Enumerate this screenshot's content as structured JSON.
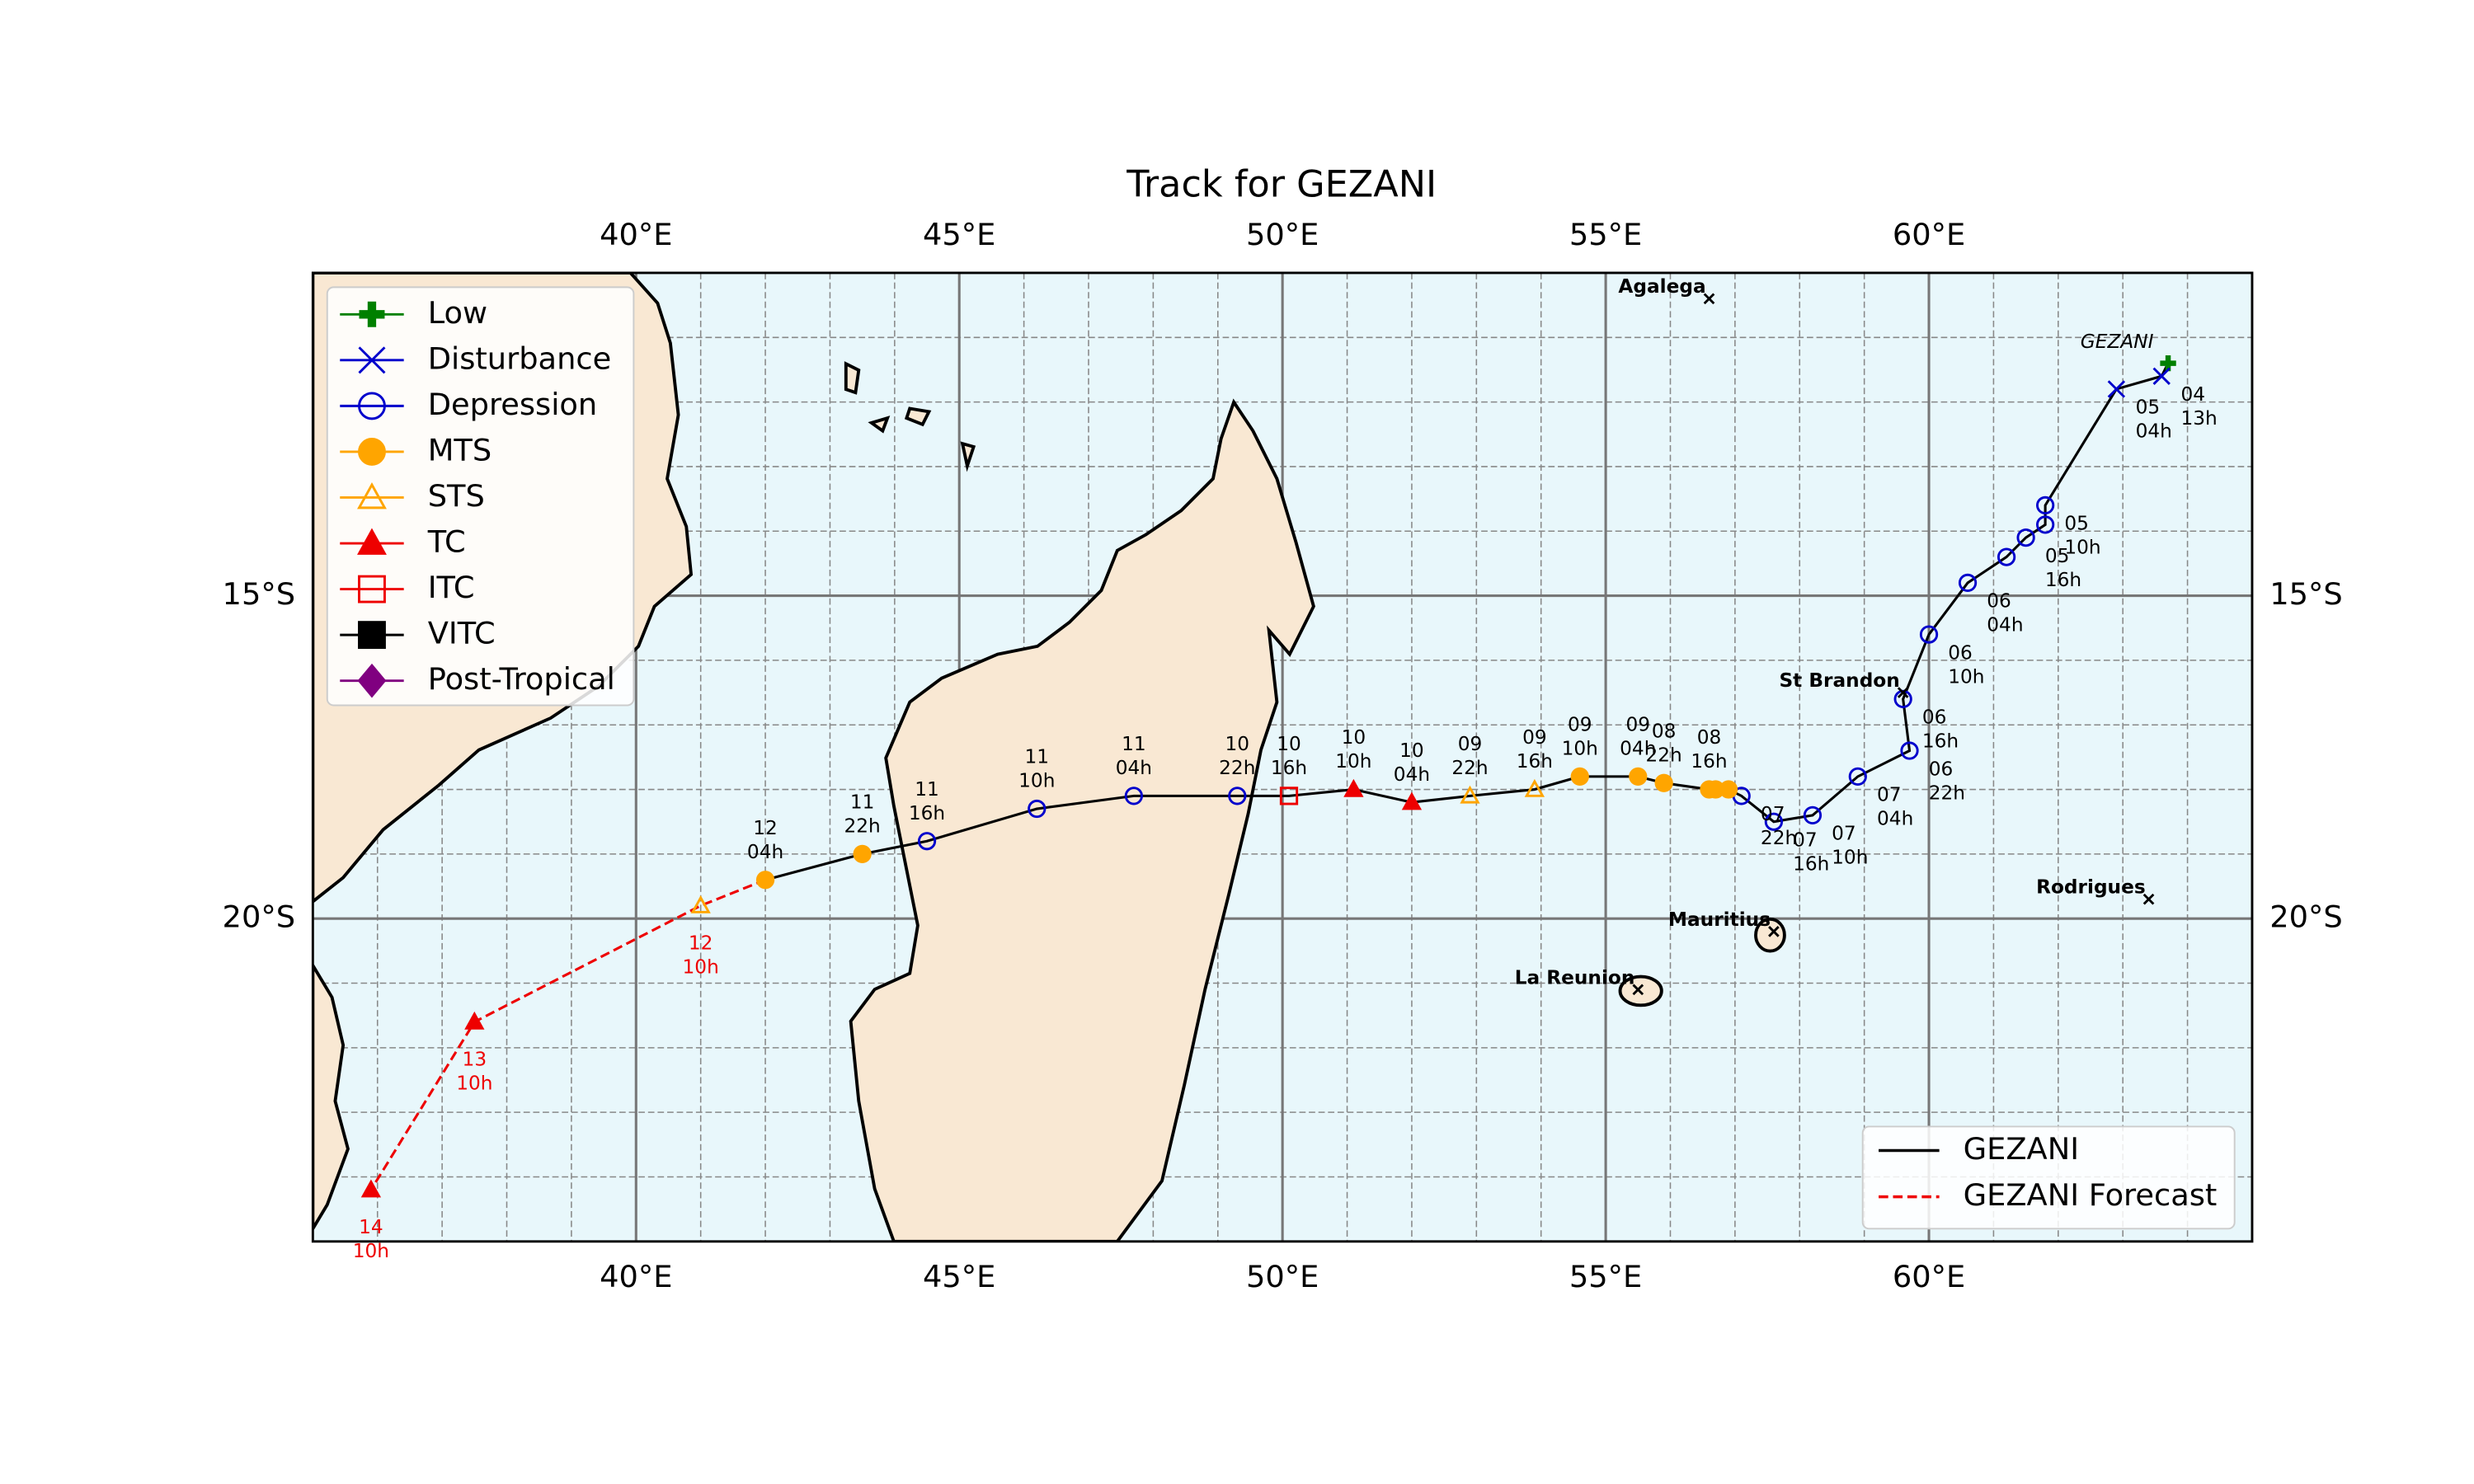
{
  "chart_data": {
    "type": "track",
    "title": "Track for GEZANI",
    "storm_label": "GEZANI",
    "xlim": [
      35,
      65
    ],
    "ylim": [
      -25,
      -10
    ],
    "xticks": [
      {
        "value": 40,
        "label": "40°E"
      },
      {
        "value": 45,
        "label": "45°E"
      },
      {
        "value": 50,
        "label": "50°E"
      },
      {
        "value": 55,
        "label": "55°E"
      },
      {
        "value": 60,
        "label": "60°E"
      }
    ],
    "yticks": [
      {
        "value": -15,
        "label": "15°S"
      },
      {
        "value": -20,
        "label": "20°S"
      }
    ],
    "minor_xticks": [
      36,
      37,
      38,
      39,
      41,
      42,
      43,
      44,
      46,
      47,
      48,
      49,
      51,
      52,
      53,
      54,
      56,
      57,
      58,
      59,
      61,
      62,
      63,
      64
    ],
    "minor_yticks": [
      -24,
      -23,
      -22,
      -21,
      -19,
      -18,
      -17,
      -16,
      -14,
      -13,
      -12,
      -11
    ],
    "grid": true,
    "intensity_classes": [
      {
        "name": "Low",
        "color": "#008000",
        "marker": "plus",
        "filled": true
      },
      {
        "name": "Disturbance",
        "color": "#0000cc",
        "marker": "x",
        "filled": false
      },
      {
        "name": "Depression",
        "color": "#0000cc",
        "marker": "circle",
        "filled": false
      },
      {
        "name": "MTS",
        "color": "#ffa500",
        "marker": "circle",
        "filled": true
      },
      {
        "name": "STS",
        "color": "#ffa500",
        "marker": "triangle",
        "filled": false
      },
      {
        "name": "TC",
        "color": "#ee0000",
        "marker": "triangle",
        "filled": true
      },
      {
        "name": "ITC",
        "color": "#ee0000",
        "marker": "square",
        "filled": false
      },
      {
        "name": "VITC",
        "color": "#000000",
        "marker": "square",
        "filled": true
      },
      {
        "name": "Post-Tropical",
        "color": "#800080",
        "marker": "diamond",
        "filled": true
      }
    ],
    "series": [
      {
        "name": "GEZANI",
        "color": "#000000",
        "style": "solid",
        "points": [
          {
            "lon": 63.7,
            "lat": -11.4,
            "class": "Low",
            "day": null,
            "hour": null
          },
          {
            "lon": 63.6,
            "lat": -11.6,
            "class": "Disturbance",
            "day": "04",
            "hour": "13h"
          },
          {
            "lon": 62.9,
            "lat": -11.8,
            "class": "Disturbance",
            "day": "05",
            "hour": "04h"
          },
          {
            "lon": 61.8,
            "lat": -13.6,
            "class": "Depression",
            "day": "05",
            "hour": "10h"
          },
          {
            "lon": 61.8,
            "lat": -13.9,
            "class": "Depression",
            "day": null,
            "hour": null
          },
          {
            "lon": 61.5,
            "lat": -14.1,
            "class": "Depression",
            "day": "05",
            "hour": "16h"
          },
          {
            "lon": 61.2,
            "lat": -14.4,
            "class": "Depression",
            "day": null,
            "hour": null
          },
          {
            "lon": 60.6,
            "lat": -14.8,
            "class": "Depression",
            "day": "06",
            "hour": "04h"
          },
          {
            "lon": 60.0,
            "lat": -15.6,
            "class": "Depression",
            "day": "06",
            "hour": "10h"
          },
          {
            "lon": 59.6,
            "lat": -16.6,
            "class": "Depression",
            "day": "06",
            "hour": "16h"
          },
          {
            "lon": 59.7,
            "lat": -17.4,
            "class": "Depression",
            "day": "06",
            "hour": "22h"
          },
          {
            "lon": 58.9,
            "lat": -17.8,
            "class": "Depression",
            "day": "07",
            "hour": "04h"
          },
          {
            "lon": 58.2,
            "lat": -18.4,
            "class": "Depression",
            "day": "07",
            "hour": "10h"
          },
          {
            "lon": 57.6,
            "lat": -18.5,
            "class": "Depression",
            "day": "07",
            "hour": "16h"
          },
          {
            "lon": 57.1,
            "lat": -18.1,
            "class": "Depression",
            "day": "07",
            "hour": "22h"
          },
          {
            "lon": 56.9,
            "lat": -18.0,
            "class": "MTS",
            "day": null,
            "hour": null
          },
          {
            "lon": 56.7,
            "lat": -18.0,
            "class": "MTS",
            "day": null,
            "hour": null
          },
          {
            "lon": 56.6,
            "lat": -18.0,
            "class": "MTS",
            "day": "08",
            "hour": "16h"
          },
          {
            "lon": 55.9,
            "lat": -17.9,
            "class": "MTS",
            "day": "08",
            "hour": "22h"
          },
          {
            "lon": 55.5,
            "lat": -17.8,
            "class": "MTS",
            "day": "09",
            "hour": "04h"
          },
          {
            "lon": 54.6,
            "lat": -17.8,
            "class": "MTS",
            "day": "09",
            "hour": "10h"
          },
          {
            "lon": 53.9,
            "lat": -18.0,
            "class": "STS",
            "day": "09",
            "hour": "16h"
          },
          {
            "lon": 52.9,
            "lat": -18.1,
            "class": "STS",
            "day": "09",
            "hour": "22h"
          },
          {
            "lon": 52.0,
            "lat": -18.2,
            "class": "TC",
            "day": "10",
            "hour": "04h"
          },
          {
            "lon": 51.1,
            "lat": -18.0,
            "class": "TC",
            "day": "10",
            "hour": "10h"
          },
          {
            "lon": 50.1,
            "lat": -18.1,
            "class": "ITC",
            "day": "10",
            "hour": "16h"
          },
          {
            "lon": 49.3,
            "lat": -18.1,
            "class": "Depression",
            "day": "10",
            "hour": "22h"
          },
          {
            "lon": 47.7,
            "lat": -18.1,
            "class": "Depression",
            "day": "11",
            "hour": "04h"
          },
          {
            "lon": 46.2,
            "lat": -18.3,
            "class": "Depression",
            "day": "11",
            "hour": "10h"
          },
          {
            "lon": 44.5,
            "lat": -18.8,
            "class": "Depression",
            "day": "11",
            "hour": "16h"
          },
          {
            "lon": 43.5,
            "lat": -19.0,
            "class": "MTS",
            "day": "11",
            "hour": "22h"
          },
          {
            "lon": 42.0,
            "lat": -19.4,
            "class": "MTS",
            "day": "12",
            "hour": "04h"
          }
        ]
      },
      {
        "name": "GEZANI Forecast",
        "color": "#ee0000",
        "style": "dashed",
        "points": [
          {
            "lon": 41.0,
            "lat": -19.8,
            "class": "STS",
            "day": "12",
            "hour": "10h"
          },
          {
            "lon": 37.5,
            "lat": -21.6,
            "class": "TC",
            "day": "13",
            "hour": "10h"
          },
          {
            "lon": 35.9,
            "lat": -24.2,
            "class": "TC",
            "day": "14",
            "hour": "10h"
          }
        ]
      }
    ],
    "places": [
      {
        "name": "Agalega",
        "lon": 56.6,
        "lat": -10.4
      },
      {
        "name": "St Brandon",
        "lon": 59.6,
        "lat": -16.5
      },
      {
        "name": "Rodrigues",
        "lon": 63.4,
        "lat": -19.7
      },
      {
        "name": "Mauritius",
        "lon": 57.6,
        "lat": -20.2
      },
      {
        "name": "La Reunion",
        "lon": 55.5,
        "lat": -21.1
      }
    ]
  }
}
